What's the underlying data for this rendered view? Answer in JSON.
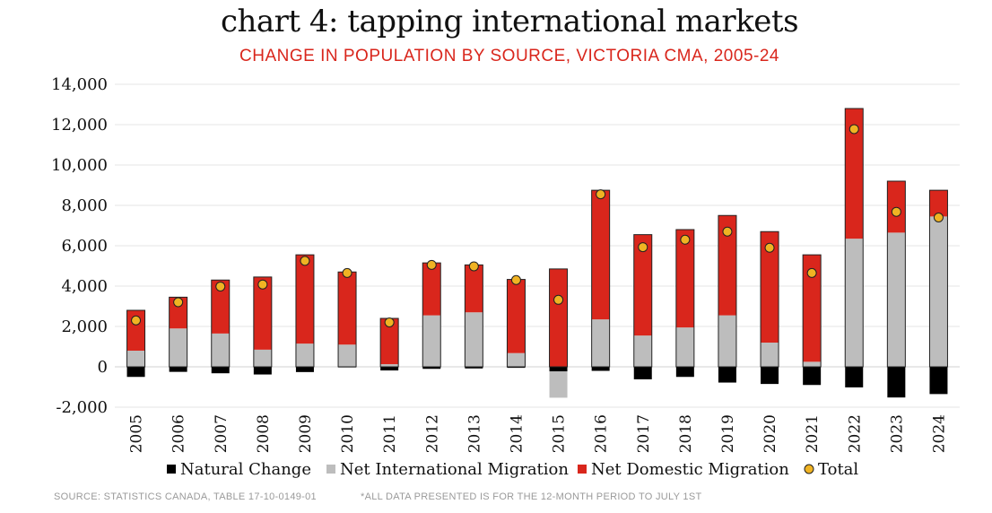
{
  "chart_data": {
    "type": "bar",
    "stacked": true,
    "title": "chart 4: tapping international markets",
    "subtitle": "CHANGE IN POPULATION BY SOURCE, VICTORIA CMA, 2005-24",
    "categories": [
      "2005",
      "2006",
      "2007",
      "2008",
      "2009",
      "2010",
      "2011",
      "2012",
      "2013",
      "2014",
      "2015",
      "2016",
      "2017",
      "2018",
      "2019",
      "2020",
      "2021",
      "2022",
      "2023",
      "2024"
    ],
    "ylim": [
      -2000,
      14000
    ],
    "yticks": [
      -2000,
      0,
      2000,
      4000,
      6000,
      8000,
      10000,
      12000,
      14000
    ],
    "ytick_labels": [
      "-2,000",
      "0",
      "2,000",
      "4,000",
      "6,000",
      "8,000",
      "10,000",
      "12,000",
      "14,000"
    ],
    "grid": true,
    "legend_position": "bottom",
    "series": [
      {
        "name": "Natural Change",
        "color": "#000000",
        "values": [
          -500,
          -250,
          -320,
          -380,
          -260,
          -30,
          -180,
          -100,
          -80,
          -50,
          -230,
          -200,
          -620,
          -500,
          -780,
          -850,
          -900,
          -1020,
          -1520,
          -1350
        ]
      },
      {
        "name": "Net International Migration",
        "color": "#bdbdbd",
        "values": [
          800,
          1900,
          1650,
          850,
          1150,
          1100,
          130,
          2550,
          2700,
          680,
          -1300,
          2350,
          1550,
          1950,
          2550,
          1200,
          250,
          6350,
          6650,
          7450
        ]
      },
      {
        "name": "Net Domestic Migration",
        "color": "#d9261c",
        "values": [
          2000,
          1550,
          2650,
          3600,
          4400,
          3600,
          2270,
          2600,
          2350,
          3650,
          4850,
          6400,
          5000,
          4850,
          4950,
          5500,
          5300,
          6450,
          2550,
          1300
        ]
      },
      {
        "name": "Total",
        "type": "marker",
        "color": "#f0b323",
        "values": [
          2300,
          3200,
          3980,
          4080,
          5250,
          4650,
          2200,
          5050,
          4980,
          4300,
          3320,
          8550,
          5930,
          6300,
          6700,
          5900,
          4650,
          11780,
          7680,
          7400
        ]
      }
    ]
  },
  "footer": {
    "source": "SOURCE: STATISTICS CANADA, TABLE 17-10-0149-01",
    "note": "*ALL DATA PRESENTED IS FOR THE 12-MONTH PERIOD TO JULY 1ST"
  }
}
